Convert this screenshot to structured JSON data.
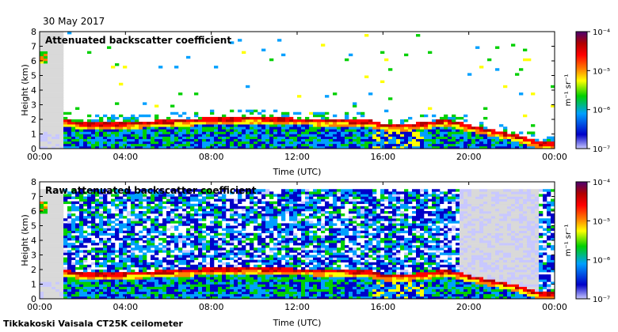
{
  "date": "30 May 2017",
  "footer": "Tikkakoski Vaisala CT25K ceilometer",
  "colors": {
    "noise": "#d9d9d9",
    "scale": [
      "#c8c8ff",
      "#0000c8",
      "#00a0ff",
      "#00d000",
      "#ffff00",
      "#ff8000",
      "#ff0000",
      "#b00000",
      "#4b0070"
    ]
  },
  "chart_data": [
    {
      "type": "heatmap",
      "title": "Attenuated backscatter coefficient",
      "xlabel": "Time (UTC)",
      "ylabel": "Height (km)",
      "x_ticks": [
        "00:00",
        "04:00",
        "08:00",
        "12:00",
        "16:00",
        "20:00",
        "00:00"
      ],
      "x_range_hours": [
        0,
        24
      ],
      "y_ticks": [
        0,
        1,
        2,
        3,
        4,
        5,
        6,
        7,
        8
      ],
      "ylim": [
        0,
        8
      ],
      "colorbar": {
        "label": "m⁻¹ sr⁻¹",
        "ticks": [
          "10⁻⁷",
          "10⁻⁶",
          "10⁻⁵",
          "10⁻⁴"
        ],
        "range": [
          1e-07,
          0.0001
        ]
      },
      "boundary_layer_top_km": [
        [
          1.1,
          1.9
        ],
        [
          2,
          1.65
        ],
        [
          4,
          1.7
        ],
        [
          6,
          1.85
        ],
        [
          8,
          2.0
        ],
        [
          10,
          2.05
        ],
        [
          12,
          1.95
        ],
        [
          14,
          1.9
        ],
        [
          15.5,
          1.8
        ],
        [
          16,
          1.6
        ],
        [
          17,
          1.55
        ],
        [
          18,
          1.7
        ],
        [
          19,
          1.9
        ],
        [
          20,
          1.5
        ],
        [
          21,
          1.2
        ],
        [
          22,
          0.9
        ],
        [
          23,
          0.5
        ],
        [
          23.5,
          0.3
        ],
        [
          24,
          0.3
        ]
      ],
      "cloud_layer": {
        "time_hours": [
          0.0,
          0.4
        ],
        "height_km": [
          5.8,
          6.6
        ]
      }
    },
    {
      "type": "heatmap",
      "title": "Raw attenuated backscatter coefficient",
      "xlabel": "Time (UTC)",
      "ylabel": "Height (km)",
      "x_ticks": [
        "00:00",
        "04:00",
        "08:00",
        "12:00",
        "16:00",
        "20:00",
        "00:00"
      ],
      "x_range_hours": [
        0,
        24
      ],
      "y_ticks": [
        0,
        1,
        2,
        3,
        4,
        5,
        6,
        7,
        8
      ],
      "ylim": [
        0,
        8
      ],
      "colorbar": {
        "label": "m⁻¹ sr⁻¹",
        "ticks": [
          "10⁻⁷",
          "10⁻⁶",
          "10⁻⁵",
          "10⁻⁴"
        ],
        "range": [
          1e-07,
          0.0001
        ]
      },
      "boundary_layer_top_km": [
        [
          1.1,
          1.9
        ],
        [
          2,
          1.65
        ],
        [
          4,
          1.7
        ],
        [
          6,
          1.85
        ],
        [
          8,
          2.0
        ],
        [
          10,
          2.05
        ],
        [
          12,
          1.95
        ],
        [
          14,
          1.9
        ],
        [
          15.5,
          1.8
        ],
        [
          16,
          1.6
        ],
        [
          17,
          1.55
        ],
        [
          18,
          1.7
        ],
        [
          19,
          1.9
        ],
        [
          20,
          1.5
        ],
        [
          21,
          1.2
        ],
        [
          22,
          0.9
        ],
        [
          23,
          0.5
        ],
        [
          23.5,
          0.3
        ],
        [
          24,
          0.3
        ]
      ],
      "cloud_layer": {
        "time_hours": [
          0.0,
          0.4
        ],
        "height_km": [
          5.8,
          6.6
        ]
      }
    }
  ]
}
